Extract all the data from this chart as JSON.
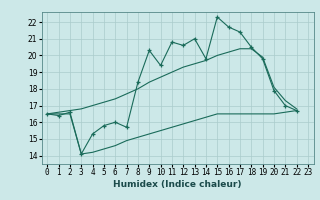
{
  "xlabel": "Humidex (Indice chaleur)",
  "bg_color": "#cce8e8",
  "grid_color": "#aacccc",
  "line_color": "#1a6b5a",
  "xlim": [
    -0.5,
    23.5
  ],
  "ylim": [
    13.5,
    22.6
  ],
  "xticks": [
    0,
    1,
    2,
    3,
    4,
    5,
    6,
    7,
    8,
    9,
    10,
    11,
    12,
    13,
    14,
    15,
    16,
    17,
    18,
    19,
    20,
    21,
    22,
    23
  ],
  "yticks": [
    14,
    15,
    16,
    17,
    18,
    19,
    20,
    21,
    22
  ],
  "line1_y": [
    16.5,
    16.4,
    16.6,
    14.1,
    15.3,
    15.8,
    16.0,
    15.7,
    18.4,
    20.3,
    19.4,
    20.8,
    20.6,
    21.0,
    19.8,
    22.3,
    21.7,
    21.4,
    20.5,
    19.8,
    17.9,
    17.0,
    16.7,
    null
  ],
  "line2_y": [
    16.5,
    16.6,
    16.7,
    16.8,
    17.0,
    17.2,
    17.4,
    17.7,
    18.0,
    18.4,
    18.7,
    19.0,
    19.3,
    19.5,
    19.7,
    20.0,
    20.2,
    20.4,
    20.4,
    19.9,
    18.1,
    17.3,
    16.8,
    null
  ],
  "line3_y": [
    16.5,
    16.5,
    16.5,
    14.1,
    14.2,
    14.4,
    14.6,
    14.9,
    15.1,
    15.3,
    15.5,
    15.7,
    15.9,
    16.1,
    16.3,
    16.5,
    16.5,
    16.5,
    16.5,
    16.5,
    16.5,
    16.6,
    16.7,
    null
  ]
}
